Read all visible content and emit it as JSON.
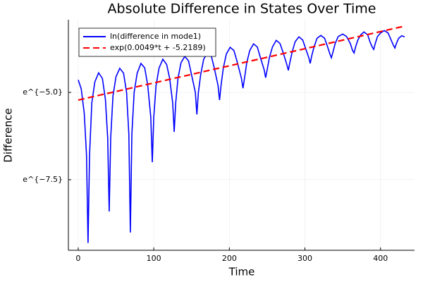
{
  "chart_data": {
    "type": "line",
    "title": "Absolute Difference in States Over Time",
    "x_label": "Time",
    "y_label": "Difference",
    "xlim": [
      -13,
      445
    ],
    "ylim": [
      -9.52,
      -2.92
    ],
    "xticks": [
      0,
      100,
      200,
      300,
      400
    ],
    "yticks": [
      {
        "value": -5.0,
        "label": "e^{−5.0}"
      },
      {
        "value": -7.5,
        "label": "e^{−7.5}"
      }
    ],
    "grid": true,
    "legend": "top-left",
    "series": [
      {
        "name": "ln(difference in mode1)",
        "color": "#0000ff",
        "dash": false,
        "x": [
          0,
          4,
          8,
          11,
          13,
          15,
          18,
          22,
          27,
          32,
          36,
          39,
          41,
          43,
          46,
          50,
          55,
          60,
          64,
          67,
          69,
          71,
          74,
          78,
          83,
          88,
          92,
          96,
          98,
          100,
          103,
          107,
          112,
          117,
          121,
          125,
          127,
          129,
          132,
          136,
          141,
          146,
          150,
          155,
          157,
          159,
          162,
          166,
          171,
          176,
          180,
          185,
          187,
          189,
          192,
          196,
          201,
          206,
          210,
          216,
          218,
          220,
          223,
          227,
          232,
          237,
          241,
          246,
          248,
          250,
          253,
          257,
          262,
          267,
          271,
          276,
          278,
          280,
          283,
          287,
          292,
          297,
          301,
          305,
          307,
          309,
          312,
          316,
          321,
          326,
          330,
          333,
          335,
          337,
          340,
          344,
          350,
          355,
          360,
          363,
          365,
          367,
          370,
          374,
          378,
          383,
          386,
          389,
          391,
          393,
          396,
          400,
          405,
          410,
          414,
          417,
          419,
          421,
          424,
          428,
          432
        ],
        "values": [
          -4.64,
          -4.9,
          -5.6,
          -6.8,
          -9.31,
          -6.8,
          -5.3,
          -4.7,
          -4.44,
          -4.6,
          -5.2,
          -6.3,
          -8.41,
          -6.3,
          -5.1,
          -4.55,
          -4.31,
          -4.45,
          -5.0,
          -6.2,
          -9.01,
          -6.2,
          -5.0,
          -4.45,
          -4.17,
          -4.3,
          -4.8,
          -5.7,
          -7.0,
          -5.7,
          -4.8,
          -4.3,
          -4.05,
          -4.2,
          -4.6,
          -5.3,
          -6.13,
          -5.3,
          -4.6,
          -4.15,
          -3.97,
          -4.1,
          -4.5,
          -5.0,
          -5.63,
          -5.0,
          -4.5,
          -4.05,
          -3.87,
          -3.95,
          -4.3,
          -4.8,
          -5.22,
          -4.8,
          -4.3,
          -3.9,
          -3.71,
          -3.8,
          -4.1,
          -4.6,
          -4.88,
          -4.6,
          -4.15,
          -3.8,
          -3.61,
          -3.7,
          -4.0,
          -4.35,
          -4.58,
          -4.35,
          -4.0,
          -3.7,
          -3.51,
          -3.6,
          -3.85,
          -4.2,
          -4.37,
          -4.15,
          -3.85,
          -3.55,
          -3.41,
          -3.5,
          -3.75,
          -4.0,
          -4.17,
          -3.95,
          -3.7,
          -3.45,
          -3.37,
          -3.45,
          -3.7,
          -3.9,
          -4.01,
          -3.85,
          -3.6,
          -3.4,
          -3.33,
          -3.4,
          -3.6,
          -3.8,
          -3.87,
          -3.7,
          -3.5,
          -3.35,
          -3.27,
          -3.35,
          -3.55,
          -3.7,
          -3.77,
          -3.6,
          -3.4,
          -3.3,
          -3.23,
          -3.3,
          -3.5,
          -3.65,
          -3.73,
          -3.6,
          -3.45,
          -3.38,
          -3.41
        ]
      },
      {
        "name": "exp(0.0049*t + -5.2189)",
        "color": "#ff0000",
        "dash": true,
        "x": [
          0,
          432
        ],
        "values": [
          -5.2189,
          -3.1021
        ]
      }
    ]
  }
}
